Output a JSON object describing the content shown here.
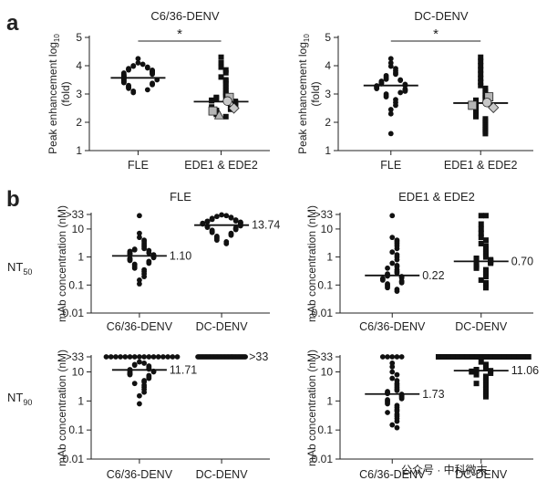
{
  "figure": {
    "panel_a_letter": "a",
    "panel_b_letter": "b",
    "row_nt50": {
      "base": "NT",
      "sub": "50"
    },
    "row_nt90": {
      "base": "NT",
      "sub": "90"
    },
    "watermark": "公众号 · 中科微末"
  },
  "chart_data": [
    {
      "id": "a-c636",
      "type": "scatter",
      "title": "C6/36-DENV",
      "ylabel": "Peak enhancement log10 (fold)",
      "ylabel_parts": {
        "main": "Peak enhancement log",
        "sub": "10",
        "tail": "(fold)"
      },
      "ylim": [
        1,
        5
      ],
      "yticks": [
        "1",
        "2",
        "3",
        "4",
        "5"
      ],
      "categories": [
        "FLE",
        "EDE1 & EDE2"
      ],
      "significance": "*",
      "series": [
        {
          "category": "FLE",
          "marker": "circle",
          "median": 3.57,
          "values": [
            4.25,
            4.1,
            4.05,
            4.0,
            3.98,
            3.95,
            3.92,
            3.9,
            3.88,
            3.85,
            3.84,
            3.82,
            3.8,
            3.78,
            3.76,
            3.74,
            3.72,
            3.7,
            3.69,
            3.67,
            3.65,
            3.63,
            3.61,
            3.6,
            3.58,
            3.56,
            3.55,
            3.53,
            3.51,
            3.5,
            3.48,
            3.46,
            3.44,
            3.42,
            3.4,
            3.38,
            3.35,
            3.33,
            3.3,
            3.28,
            3.25,
            3.22,
            3.2,
            3.15,
            3.1,
            3.05
          ]
        },
        {
          "category": "EDE1 & EDE2",
          "marker": "square",
          "median": 2.73,
          "values": [
            4.3,
            4.1,
            3.95,
            3.85,
            3.75,
            3.6,
            3.5,
            3.45,
            3.35,
            3.25,
            3.15,
            3.05,
            2.98,
            2.92,
            2.88,
            2.85,
            2.82,
            2.8,
            2.78,
            2.76,
            2.74,
            2.72,
            2.7,
            2.68,
            2.66,
            2.64,
            2.62,
            2.6,
            2.57,
            2.54,
            2.5,
            2.46,
            2.42,
            2.38,
            2.33,
            2.28,
            2.2
          ]
        },
        {
          "category": "EDE1 & EDE2",
          "marker": "grey-square",
          "values": [
            2.88,
            2.4
          ]
        },
        {
          "category": "EDE1 & EDE2",
          "marker": "grey-diamond",
          "values": [
            2.5
          ]
        },
        {
          "category": "EDE1 & EDE2",
          "marker": "grey-circle",
          "values": [
            2.75
          ]
        },
        {
          "category": "EDE1 & EDE2",
          "marker": "grey-triangle",
          "values": [
            2.25
          ]
        }
      ]
    },
    {
      "id": "a-dc",
      "type": "scatter",
      "title": "DC-DENV",
      "ylabel": "Peak enhancement log10 (fold)",
      "ylabel_parts": {
        "main": "Peak enhancement log",
        "sub": "10",
        "tail": "(fold)"
      },
      "ylim": [
        1,
        5
      ],
      "yticks": [
        "1",
        "2",
        "3",
        "4",
        "5"
      ],
      "categories": [
        "FLE",
        "EDE1 & EDE2"
      ],
      "significance": "*",
      "series": [
        {
          "category": "FLE",
          "marker": "circle",
          "median": 3.3,
          "values": [
            4.25,
            4.1,
            3.98,
            3.9,
            3.82,
            3.75,
            3.7,
            3.65,
            3.6,
            3.55,
            3.52,
            3.5,
            3.48,
            3.45,
            3.42,
            3.4,
            3.38,
            3.36,
            3.34,
            3.32,
            3.3,
            3.29,
            3.27,
            3.25,
            3.23,
            3.21,
            3.19,
            3.17,
            3.15,
            3.12,
            3.1,
            3.05,
            3.0,
            2.95,
            2.9,
            2.8,
            2.7,
            2.6,
            2.45,
            2.3,
            1.6
          ]
        },
        {
          "category": "EDE1 & EDE2",
          "marker": "square",
          "median": 2.68,
          "values": [
            4.3,
            4.15,
            4.0,
            3.85,
            3.7,
            3.55,
            3.42,
            3.3,
            3.2,
            3.1,
            3.02,
            2.95,
            2.88,
            2.82,
            2.78,
            2.74,
            2.7,
            2.66,
            2.62,
            2.58,
            2.54,
            2.5,
            2.45,
            2.4,
            2.35,
            2.3,
            2.25,
            2.2,
            2.12,
            2.05,
            1.98,
            1.9,
            1.82,
            1.75,
            1.68,
            1.6
          ]
        },
        {
          "category": "EDE1 & EDE2",
          "marker": "grey-square",
          "values": [
            2.9,
            2.6
          ]
        },
        {
          "category": "EDE1 & EDE2",
          "marker": "grey-diamond",
          "values": [
            2.52
          ]
        },
        {
          "category": "EDE1 & EDE2",
          "marker": "grey-circle",
          "values": [
            2.7
          ]
        }
      ]
    },
    {
      "id": "b-fle-nt50",
      "type": "scatter",
      "title": "FLE",
      "ylabel": "mAb concentration (nM)",
      "yscale": "log",
      "ylim": [
        0.01,
        33
      ],
      "yticks": [
        ">33",
        "10",
        "1",
        "0.1",
        "0.01"
      ],
      "categories": [
        "C6/36-DENV",
        "DC-DENV"
      ],
      "series": [
        {
          "category": "C6/36-DENV",
          "marker": "circle",
          "median": 1.1,
          "median_label": "1.10",
          "values": [
            30,
            7,
            5,
            4,
            3.5,
            3,
            2.6,
            2.3,
            2,
            1.9,
            1.8,
            1.7,
            1.6,
            1.5,
            1.4,
            1.35,
            1.3,
            1.25,
            1.2,
            1.15,
            1.1,
            1.05,
            1.0,
            0.95,
            0.9,
            0.85,
            0.8,
            0.75,
            0.7,
            0.65,
            0.6,
            0.55,
            0.5,
            0.45,
            0.4,
            0.35,
            0.3,
            0.25,
            0.2,
            0.15,
            0.11
          ]
        },
        {
          "category": "DC-DENV",
          "marker": "circle",
          "median": 13.74,
          "median_label": "13.74",
          "values": [
            32,
            30,
            28,
            26,
            25,
            24,
            23,
            22,
            21,
            20,
            19.5,
            19,
            18.5,
            18,
            17.5,
            17,
            16.5,
            16,
            15.5,
            15,
            14.5,
            14,
            13.5,
            13,
            12.5,
            12,
            11.5,
            11,
            10.5,
            10,
            9.5,
            9,
            8.5,
            8,
            7.5,
            7,
            6.5,
            6,
            5.5,
            5,
            4.5,
            4,
            3.5,
            3
          ]
        }
      ]
    },
    {
      "id": "b-ede-nt50",
      "type": "scatter",
      "title": "EDE1 & EDE2",
      "ylabel": "mAb concentration (nM)",
      "yscale": "log",
      "ylim": [
        0.01,
        33
      ],
      "yticks": [
        ">33",
        "10",
        "1",
        "0.1",
        "0.01"
      ],
      "categories": [
        "C6/36-DENV",
        "DC-DENV"
      ],
      "series": [
        {
          "category": "C6/36-DENV",
          "marker": "circle",
          "median": 0.22,
          "median_label": "0.22",
          "values": [
            30,
            5,
            4,
            3.5,
            3,
            2.5,
            2,
            1.5,
            1.2,
            1.0,
            0.8,
            0.6,
            0.5,
            0.45,
            0.4,
            0.35,
            0.3,
            0.27,
            0.25,
            0.23,
            0.21,
            0.2,
            0.19,
            0.18,
            0.17,
            0.16,
            0.15,
            0.14,
            0.13,
            0.12,
            0.11,
            0.1,
            0.09,
            0.08,
            0.07,
            0.06
          ]
        },
        {
          "category": "DC-DENV",
          "marker": "square",
          "median": 0.7,
          "median_label": "0.70",
          "values": [
            30,
            30,
            15,
            10,
            7,
            5,
            4,
            3,
            2.5,
            2,
            1.8,
            1.5,
            1.3,
            1.1,
            1.0,
            0.9,
            0.85,
            0.8,
            0.75,
            0.7,
            0.65,
            0.6,
            0.55,
            0.5,
            0.45,
            0.4,
            0.35,
            0.3,
            0.25,
            0.2,
            0.15,
            0.12,
            0.1,
            0.08
          ]
        }
      ]
    },
    {
      "id": "b-fle-nt90",
      "type": "scatter",
      "ylabel": "mAb concentration (nM)",
      "yscale": "log",
      "ylim": [
        0.01,
        33
      ],
      "yticks": [
        ">33",
        "10",
        "1",
        "0.1",
        "0.01"
      ],
      "categories": [
        "C6/36-DENV",
        "DC-DENV"
      ],
      "series": [
        {
          "category": "C6/36-DENV",
          "marker": "circle",
          "median": 11.71,
          "median_label": "11.71",
          "values": [
            33,
            33,
            33,
            33,
            33,
            33,
            33,
            33,
            33,
            33,
            33,
            33,
            33,
            33,
            33,
            33,
            22,
            20,
            18,
            17,
            16,
            15,
            14,
            13,
            12.5,
            12,
            11.5,
            11,
            10.5,
            10,
            9.5,
            9,
            8.5,
            8,
            7.5,
            7,
            6.5,
            6,
            5,
            4.5,
            4,
            3.5,
            3,
            2.5,
            2,
            1.5,
            0.8
          ]
        },
        {
          "category": "DC-DENV",
          "marker": "circle",
          "median_label": ">33",
          "saturated": true,
          "values": [
            33,
            33,
            33,
            33,
            33,
            33,
            33,
            33,
            33,
            33,
            33,
            33,
            33,
            33,
            33,
            33,
            33,
            33,
            33,
            33,
            33,
            33,
            33,
            33,
            33,
            33,
            33,
            33,
            33,
            33,
            33,
            33,
            33,
            33,
            33,
            33,
            33,
            33,
            33,
            33
          ]
        }
      ]
    },
    {
      "id": "b-ede-nt90",
      "type": "scatter",
      "ylabel": "mAb concentration (nM)",
      "yscale": "log",
      "ylim": [
        0.01,
        33
      ],
      "yticks": [
        ">33",
        "10",
        "1",
        "0.1",
        "0.01"
      ],
      "categories": [
        "C6/36-DENV",
        "DC-DENV"
      ],
      "series": [
        {
          "category": "C6/36-DENV",
          "marker": "circle",
          "median": 1.73,
          "median_label": "1.73",
          "values": [
            33,
            33,
            33,
            33,
            33,
            20,
            15,
            10,
            8,
            6,
            5,
            4,
            3.5,
            3,
            2.6,
            2.3,
            2.1,
            1.9,
            1.8,
            1.7,
            1.6,
            1.5,
            1.4,
            1.3,
            1.2,
            1.1,
            1.0,
            0.9,
            0.8,
            0.7,
            0.6,
            0.5,
            0.45,
            0.4,
            0.35,
            0.3,
            0.25,
            0.2,
            0.15,
            0.12
          ]
        },
        {
          "category": "DC-DENV",
          "marker": "square",
          "median": 11.06,
          "median_label": "11.06",
          "values": [
            33,
            33,
            33,
            33,
            33,
            33,
            33,
            33,
            33,
            33,
            33,
            33,
            33,
            33,
            33,
            33,
            33,
            33,
            33,
            33,
            22,
            18,
            15,
            13,
            12,
            11.5,
            11,
            10.5,
            10,
            9,
            8,
            7,
            6,
            5,
            4.5,
            4,
            3.5,
            3,
            2.5,
            2,
            1.7,
            1.4
          ]
        }
      ]
    }
  ]
}
